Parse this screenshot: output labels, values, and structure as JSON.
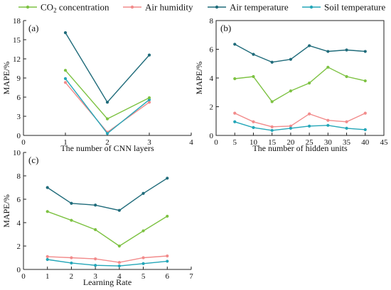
{
  "legend": {
    "entries": [
      {
        "label": "CO2 concentration",
        "base": "CO",
        "sub": "2",
        "rest": " concentration",
        "color": "#7dc242"
      },
      {
        "label": "Air humidity",
        "color": "#f28b8b"
      },
      {
        "label": "Air temperature",
        "color": "#1f6b7a"
      },
      {
        "label": "Soil temperature",
        "color": "#23a6b8"
      }
    ],
    "placement": "top"
  },
  "chart_data": [
    {
      "type": "line",
      "panel_label": "(a)",
      "xlabel": "The number of CNN layers",
      "ylabel": "MAPE/%",
      "xlim": [
        0,
        4
      ],
      "ylim": [
        0,
        18
      ],
      "xticks": [
        0,
        1,
        2,
        3,
        4
      ],
      "yticks": [
        0,
        3,
        6,
        9,
        12,
        15,
        18
      ],
      "x": [
        1,
        2,
        3
      ],
      "series": [
        {
          "name": "CO2 concentration",
          "color": "#7dc242",
          "values": [
            10.2,
            2.6,
            5.9
          ]
        },
        {
          "name": "Air humidity",
          "color": "#f28b8b",
          "values": [
            8.3,
            0.5,
            5.2
          ]
        },
        {
          "name": "Air temperature",
          "color": "#1f6b7a",
          "values": [
            16.1,
            5.2,
            12.6
          ]
        },
        {
          "name": "Soil temperature",
          "color": "#23a6b8",
          "values": [
            8.9,
            0.3,
            5.6
          ]
        }
      ]
    },
    {
      "type": "line",
      "panel_label": "(b)",
      "xlabel": "The number of hidden units",
      "ylabel": "MAPE/%",
      "xlim": [
        0,
        45
      ],
      "ylim": [
        0,
        8
      ],
      "xticks": [
        0,
        5,
        10,
        15,
        20,
        25,
        30,
        35,
        40,
        45
      ],
      "yticks": [
        0,
        2,
        4,
        6,
        8
      ],
      "x": [
        5,
        10,
        15,
        20,
        25,
        30,
        35,
        40
      ],
      "series": [
        {
          "name": "CO2 concentration",
          "color": "#7dc242",
          "values": [
            3.95,
            4.1,
            2.35,
            3.1,
            3.65,
            4.75,
            4.1,
            3.8
          ]
        },
        {
          "name": "Air humidity",
          "color": "#f28b8b",
          "values": [
            1.55,
            0.95,
            0.6,
            0.65,
            1.5,
            1.05,
            0.95,
            1.55
          ]
        },
        {
          "name": "Air temperature",
          "color": "#1f6b7a",
          "values": [
            6.35,
            5.65,
            5.1,
            5.3,
            6.25,
            5.85,
            5.95,
            5.85
          ]
        },
        {
          "name": "Soil temperature",
          "color": "#23a6b8",
          "values": [
            0.95,
            0.55,
            0.35,
            0.5,
            0.65,
            0.7,
            0.5,
            0.4
          ]
        }
      ]
    },
    {
      "type": "line",
      "panel_label": "(c)",
      "xlabel": "Learning Rate",
      "ylabel": "MAPE/%",
      "xlim": [
        0,
        7
      ],
      "ylim": [
        0,
        10
      ],
      "xticks": [
        0,
        1,
        2,
        3,
        4,
        5,
        6,
        7
      ],
      "yticks": [
        0,
        2,
        4,
        6,
        8,
        10
      ],
      "x": [
        1,
        2,
        3,
        4,
        5,
        6
      ],
      "series": [
        {
          "name": "CO2 concentration",
          "color": "#7dc242",
          "values": [
            4.95,
            4.2,
            3.4,
            2.0,
            3.3,
            4.55
          ]
        },
        {
          "name": "Air humidity",
          "color": "#f28b8b",
          "values": [
            1.1,
            1.0,
            0.9,
            0.6,
            1.0,
            1.15
          ]
        },
        {
          "name": "Air temperature",
          "color": "#1f6b7a",
          "values": [
            7.0,
            5.65,
            5.5,
            5.05,
            6.5,
            7.8
          ]
        },
        {
          "name": "Soil temperature",
          "color": "#23a6b8",
          "values": [
            0.85,
            0.55,
            0.35,
            0.3,
            0.5,
            0.7
          ]
        }
      ]
    }
  ]
}
